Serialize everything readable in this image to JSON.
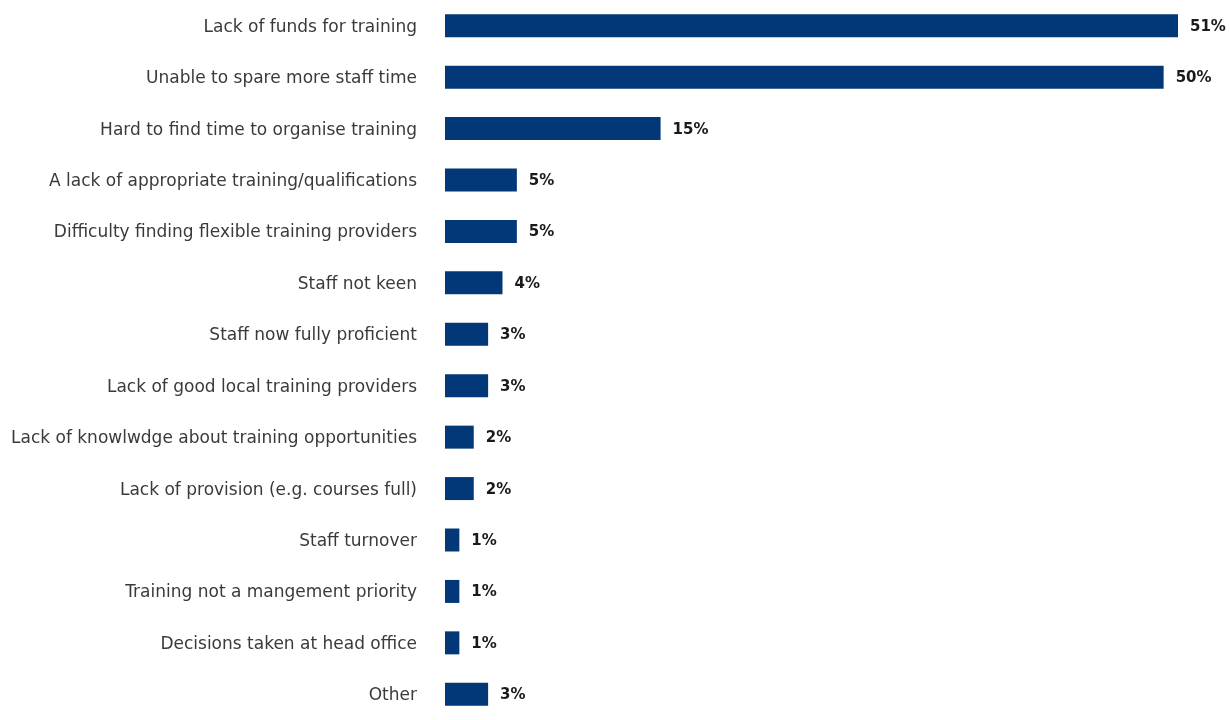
{
  "chart_data": {
    "type": "bar",
    "orientation": "horizontal",
    "categories": [
      "Lack of funds for training",
      "Unable to spare more staff time",
      "Hard to find time to organise training",
      "A lack of appropriate training/qualifications",
      "Difficulty finding flexible training providers",
      "Staff not keen",
      "Staff now fully proficient",
      "Lack of good local training providers",
      "Lack of knowlwdge about training opportunities",
      "Lack of provision (e.g. courses full)",
      "Staff turnover",
      "Training not a mangement priority",
      "Decisions taken at head office",
      "Other"
    ],
    "values": [
      51,
      50,
      15,
      5,
      5,
      4,
      3,
      3,
      2,
      2,
      1,
      1,
      1,
      3
    ],
    "value_labels": [
      "51%",
      "50%",
      "15%",
      "5%",
      "5%",
      "4%",
      "3%",
      "3%",
      "2%",
      "2%",
      "1%",
      "1%",
      "1%",
      "3%"
    ],
    "color": "#023877",
    "xlim": [
      0,
      51
    ]
  }
}
